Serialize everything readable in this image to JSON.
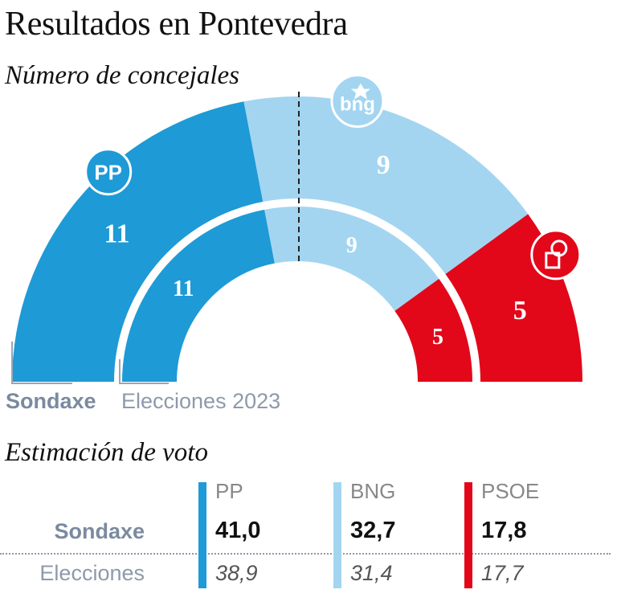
{
  "title": "Resultados en Pontevedra",
  "subtitle": "Número de concejales",
  "votes_title": "Estimación de voto",
  "colors": {
    "PP": "#1e9ad6",
    "BNG": "#a3d5f1",
    "PSOE": "#e2081a",
    "label_grey": "#7a8aa0"
  },
  "chart_data": [
    {
      "type": "pie",
      "style": "half-donut",
      "label": "Sondaxe",
      "categories": [
        "PP",
        "BNG",
        "PSOE"
      ],
      "values": [
        11,
        9,
        5
      ],
      "total": 25,
      "majority_line": true,
      "icons": [
        "pp-logo-icon",
        "bng-logo-icon",
        "psoe-rose-icon"
      ]
    },
    {
      "type": "pie",
      "style": "half-donut",
      "label": "Elecciones 2023",
      "categories": [
        "PP",
        "BNG",
        "PSOE"
      ],
      "values": [
        11,
        9,
        5
      ],
      "total": 25
    },
    {
      "type": "table",
      "title": "Estimación de voto",
      "columns": [
        "PP",
        "BNG",
        "PSOE"
      ],
      "rows": [
        {
          "label": "Sondaxe",
          "values": [
            "41,0",
            "32,7",
            "17,8"
          ]
        },
        {
          "label": "Elecciones",
          "values": [
            "38,9",
            "31,4",
            "17,7"
          ]
        }
      ]
    }
  ],
  "logos": {
    "pp": "PP",
    "bng": "bng"
  },
  "labels": {
    "outer": "Sondaxe",
    "inner": "Elecciones 2023"
  }
}
